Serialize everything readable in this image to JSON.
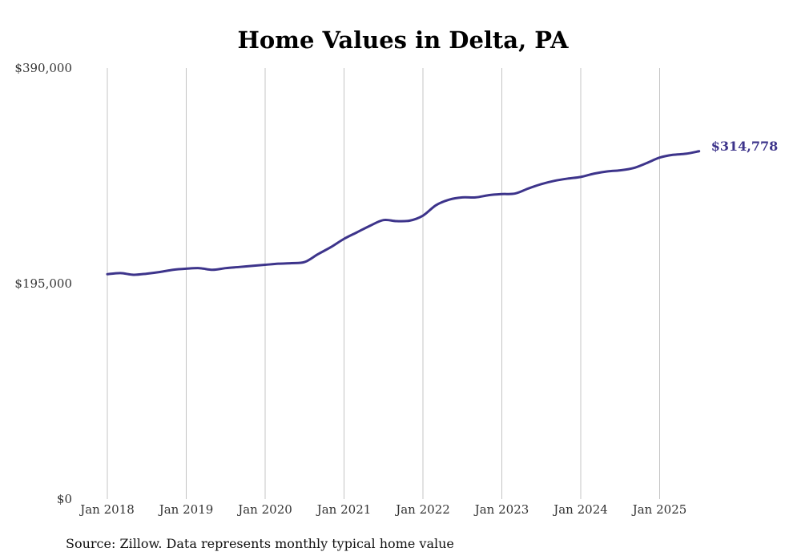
{
  "chart_data": {
    "type": "line",
    "title": "Home Values in Delta, PA",
    "source": "Source: Zillow. Data represents monthly typical home value",
    "ylim": [
      0,
      390000
    ],
    "y_ticks": [
      {
        "value": 390000,
        "label": "$390,000"
      },
      {
        "value": 195000,
        "label": "$195,000"
      },
      {
        "value": 0,
        "label": "$0"
      }
    ],
    "x_ticks": [
      {
        "value": "2018-01",
        "label": "Jan 2018"
      },
      {
        "value": "2019-01",
        "label": "Jan 2019"
      },
      {
        "value": "2020-01",
        "label": "Jan 2020"
      },
      {
        "value": "2021-01",
        "label": "Jan 2021"
      },
      {
        "value": "2022-01",
        "label": "Jan 2022"
      },
      {
        "value": "2023-01",
        "label": "Jan 2023"
      },
      {
        "value": "2024-01",
        "label": "Jan 2024"
      },
      {
        "value": "2025-01",
        "label": "Jan 2025"
      }
    ],
    "grid": "vertical",
    "line_color": "#3d348b",
    "end_label": "$314,778",
    "series": [
      {
        "points": [
          [
            "2018-01",
            203500
          ],
          [
            "2018-03",
            204500
          ],
          [
            "2018-05",
            203000
          ],
          [
            "2018-07",
            204000
          ],
          [
            "2018-09",
            205500
          ],
          [
            "2018-11",
            207500
          ],
          [
            "2019-01",
            208500
          ],
          [
            "2019-03",
            209000
          ],
          [
            "2019-05",
            207500
          ],
          [
            "2019-07",
            209000
          ],
          [
            "2019-09",
            210000
          ],
          [
            "2019-11",
            211000
          ],
          [
            "2020-01",
            212000
          ],
          [
            "2020-03",
            213000
          ],
          [
            "2020-05",
            213500
          ],
          [
            "2020-07",
            214500
          ],
          [
            "2020-09",
            221500
          ],
          [
            "2020-11",
            228000
          ],
          [
            "2021-01",
            235500
          ],
          [
            "2021-03",
            241500
          ],
          [
            "2021-05",
            247500
          ],
          [
            "2021-07",
            252500
          ],
          [
            "2021-09",
            251500
          ],
          [
            "2021-11",
            252000
          ],
          [
            "2022-01",
            256500
          ],
          [
            "2022-03",
            266000
          ],
          [
            "2022-05",
            271000
          ],
          [
            "2022-07",
            273000
          ],
          [
            "2022-09",
            273000
          ],
          [
            "2022-11",
            275000
          ],
          [
            "2023-01",
            276000
          ],
          [
            "2023-03",
            276500
          ],
          [
            "2023-05",
            281000
          ],
          [
            "2023-07",
            285000
          ],
          [
            "2023-09",
            288000
          ],
          [
            "2023-11",
            290000
          ],
          [
            "2024-01",
            291500
          ],
          [
            "2024-03",
            294500
          ],
          [
            "2024-05",
            296500
          ],
          [
            "2024-07",
            297500
          ],
          [
            "2024-09",
            299500
          ],
          [
            "2024-11",
            304000
          ],
          [
            "2025-01",
            309000
          ],
          [
            "2025-03",
            311500
          ],
          [
            "2025-05",
            312500
          ],
          [
            "2025-07",
            314778
          ]
        ]
      }
    ]
  }
}
